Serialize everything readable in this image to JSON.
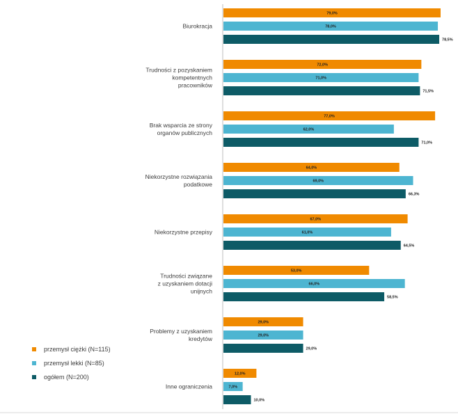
{
  "chart_data": {
    "type": "bar",
    "orientation": "horizontal",
    "title": "",
    "xlabel": "",
    "ylabel": "",
    "xlim": [
      0,
      80
    ],
    "grid": false,
    "legend_position": "bottom-left",
    "categories": [
      [
        "Biurokracja"
      ],
      [
        "Trudności z pozyskaniem",
        "kompetentnych",
        "pracowników"
      ],
      [
        "Brak wsparcia ze strony",
        "organów publicznych"
      ],
      [
        "Niekorzystne rozwiązania",
        "podatkowe"
      ],
      [
        "Niekorzystne przepisy"
      ],
      [
        "Trudności związane",
        "z uzyskaniem dotacji",
        "unijnych"
      ],
      [
        "Problemy z uzyskaniem",
        "kredytów"
      ],
      [
        "Inne ograniczenia"
      ]
    ],
    "series": [
      {
        "name": "przemysł ciężki (N=115)",
        "color": "#f08a00",
        "values": [
          79.0,
          72.0,
          77.0,
          64.0,
          67.0,
          53.0,
          29.0,
          12.0
        ],
        "labels": [
          "79,0%",
          "72,0%",
          "77,0%",
          "64,0%",
          "67,0%",
          "53,0%",
          "29,0%",
          "12,0%"
        ]
      },
      {
        "name": "przemysł lekki (N=85)",
        "color": "#4db5d1",
        "values": [
          78.0,
          71.0,
          62.0,
          69.0,
          61.0,
          66.0,
          29.0,
          7.0
        ],
        "labels": [
          "78,0%",
          "71,0%",
          "62,0%",
          "69,0%",
          "61,0%",
          "66,0%",
          "29,0%",
          "7,0%"
        ]
      },
      {
        "name": "ogółem (N=200)",
        "color": "#0d5b66",
        "values": [
          78.5,
          71.5,
          71.0,
          66.3,
          64.5,
          58.5,
          29.0,
          10.0
        ],
        "labels": [
          "78,5%",
          "71,5%",
          "71,0%",
          "66,3%",
          "64,5%",
          "58,5%",
          "29,0%",
          "10,0%"
        ]
      }
    ]
  }
}
